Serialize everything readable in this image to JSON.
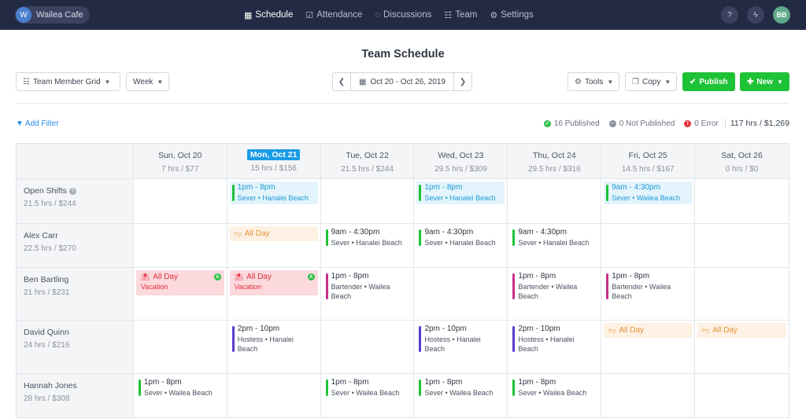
{
  "topbar": {
    "brand_initial": "W",
    "brand_name": "Wailea Cafe",
    "nav": [
      {
        "label": "Schedule",
        "icon": "calendar-icon",
        "active": true
      },
      {
        "label": "Attendance",
        "icon": "clipboard-check-icon"
      },
      {
        "label": "Discussions",
        "icon": "chat-bubbles-icon"
      },
      {
        "label": "Team",
        "icon": "users-icon"
      },
      {
        "label": "Settings",
        "icon": "gear-icon"
      }
    ],
    "avatar_initials": "BB"
  },
  "page": {
    "title": "Team Schedule"
  },
  "toolbar": {
    "view_label": "Team Member Grid",
    "period_label": "Week",
    "date_range": "Oct 20 - Oct 26, 2019",
    "tools_label": "Tools",
    "copy_label": "Copy",
    "publish_label": "Publish",
    "new_label": "New"
  },
  "filters": {
    "add_filter_label": "Add Filter",
    "published_count": "16",
    "published_label": "Published",
    "not_published_count": "0",
    "not_published_label": "Not Published",
    "error_count": "0",
    "error_label": "Error",
    "total": "117 hrs / $1,269"
  },
  "days": [
    {
      "name": "Sun, Oct 20",
      "hrs": "7 hrs / $77",
      "today": false
    },
    {
      "name": "Mon, Oct 21",
      "hrs": "15 hrs / $156",
      "today": true
    },
    {
      "name": "Tue, Oct 22",
      "hrs": "21.5 hrs / $244",
      "today": false
    },
    {
      "name": "Wed, Oct 23",
      "hrs": "29.5 hrs / $309",
      "today": false
    },
    {
      "name": "Thu, Oct 24",
      "hrs": "29.5 hrs / $316",
      "today": false
    },
    {
      "name": "Fri, Oct 25",
      "hrs": "14.5 hrs / $167",
      "today": false
    },
    {
      "name": "Sat, Oct 26",
      "hrs": "0 hrs / $0",
      "today": false
    }
  ],
  "rows": [
    {
      "name": "Open Shifts",
      "hrs": "21.5 hrs / $244",
      "help": true,
      "cells": [
        null,
        {
          "kind": "open",
          "time": "1pm - 8pm",
          "detail": "Sever • Hanalei Beach",
          "color": "#1ec237"
        },
        null,
        {
          "kind": "open",
          "time": "1pm - 8pm",
          "detail": "Sever • Hanalei Beach",
          "color": "#1ec237"
        },
        null,
        {
          "kind": "open",
          "time": "9am - 4:30pm",
          "detail": "Sever • Wailea Beach",
          "color": "#1ec237"
        },
        null
      ]
    },
    {
      "name": "Alex Carr",
      "hrs": "22.5 hrs / $270",
      "cells": [
        null,
        {
          "kind": "allday",
          "label": "All Day"
        },
        {
          "kind": "shift",
          "time": "9am - 4:30pm",
          "detail": "Sever • Hanalei Beach",
          "color": "#1ec237"
        },
        {
          "kind": "shift",
          "time": "9am - 4:30pm",
          "detail": "Sever • Hanalei Beach",
          "color": "#1ec237"
        },
        {
          "kind": "shift",
          "time": "9am - 4:30pm",
          "detail": "Sever • Hanalei Beach",
          "color": "#1ec237"
        },
        null,
        null
      ]
    },
    {
      "name": "Ben Bartling",
      "hrs": "21 hrs / $231",
      "cells": [
        {
          "kind": "vacation",
          "label": "All Day",
          "detail": "Vacation",
          "badge": "A"
        },
        {
          "kind": "vacation",
          "label": "All Day",
          "detail": "Vacation",
          "badge": "A"
        },
        {
          "kind": "shift",
          "time": "1pm - 8pm",
          "detail": "Bartender • Wailea Beach",
          "color": "#c72f86"
        },
        null,
        {
          "kind": "shift",
          "time": "1pm - 8pm",
          "detail": "Bartender • Wailea Beach",
          "color": "#c72f86"
        },
        {
          "kind": "shift",
          "time": "1pm - 8pm",
          "detail": "Bartender • Wailea Beach",
          "color": "#c72f86"
        },
        null
      ]
    },
    {
      "name": "David Quinn",
      "hrs": "24 hrs / $216",
      "cells": [
        null,
        {
          "kind": "shift",
          "time": "2pm - 10pm",
          "detail": "Hostess • Hanalei Beach",
          "color": "#5a3ccf"
        },
        null,
        {
          "kind": "shift",
          "time": "2pm - 10pm",
          "detail": "Hostess • Hanalei Beach",
          "color": "#5a3ccf"
        },
        {
          "kind": "shift",
          "time": "2pm - 10pm",
          "detail": "Hostess • Hanalei Beach",
          "color": "#5a3ccf"
        },
        {
          "kind": "allday",
          "label": "All Day"
        },
        {
          "kind": "allday",
          "label": "All Day"
        }
      ]
    },
    {
      "name": "Hannah Jones",
      "hrs": "28 hrs / $308",
      "cells": [
        {
          "kind": "shift",
          "time": "1pm - 8pm",
          "detail": "Sever • Wailea Beach",
          "color": "#1ec237"
        },
        null,
        {
          "kind": "shift",
          "time": "1pm - 8pm",
          "detail": "Sever • Wailea Beach",
          "color": "#1ec237"
        },
        {
          "kind": "shift",
          "time": "1pm - 8pm",
          "detail": "Sever • Wailea Beach",
          "color": "#1ec237"
        },
        {
          "kind": "shift",
          "time": "1pm - 8pm",
          "detail": "Sever • Wailea Beach",
          "color": "#1ec237"
        },
        null,
        null
      ]
    }
  ],
  "colors": {
    "topbar": "#232a44",
    "accent_green": "#1ec237",
    "today_blue": "#1a9be6",
    "open_shift_bg": "#e3f4fc",
    "vacation_bg": "#fbd9dc",
    "allday_bg": "#fdf1e4"
  }
}
